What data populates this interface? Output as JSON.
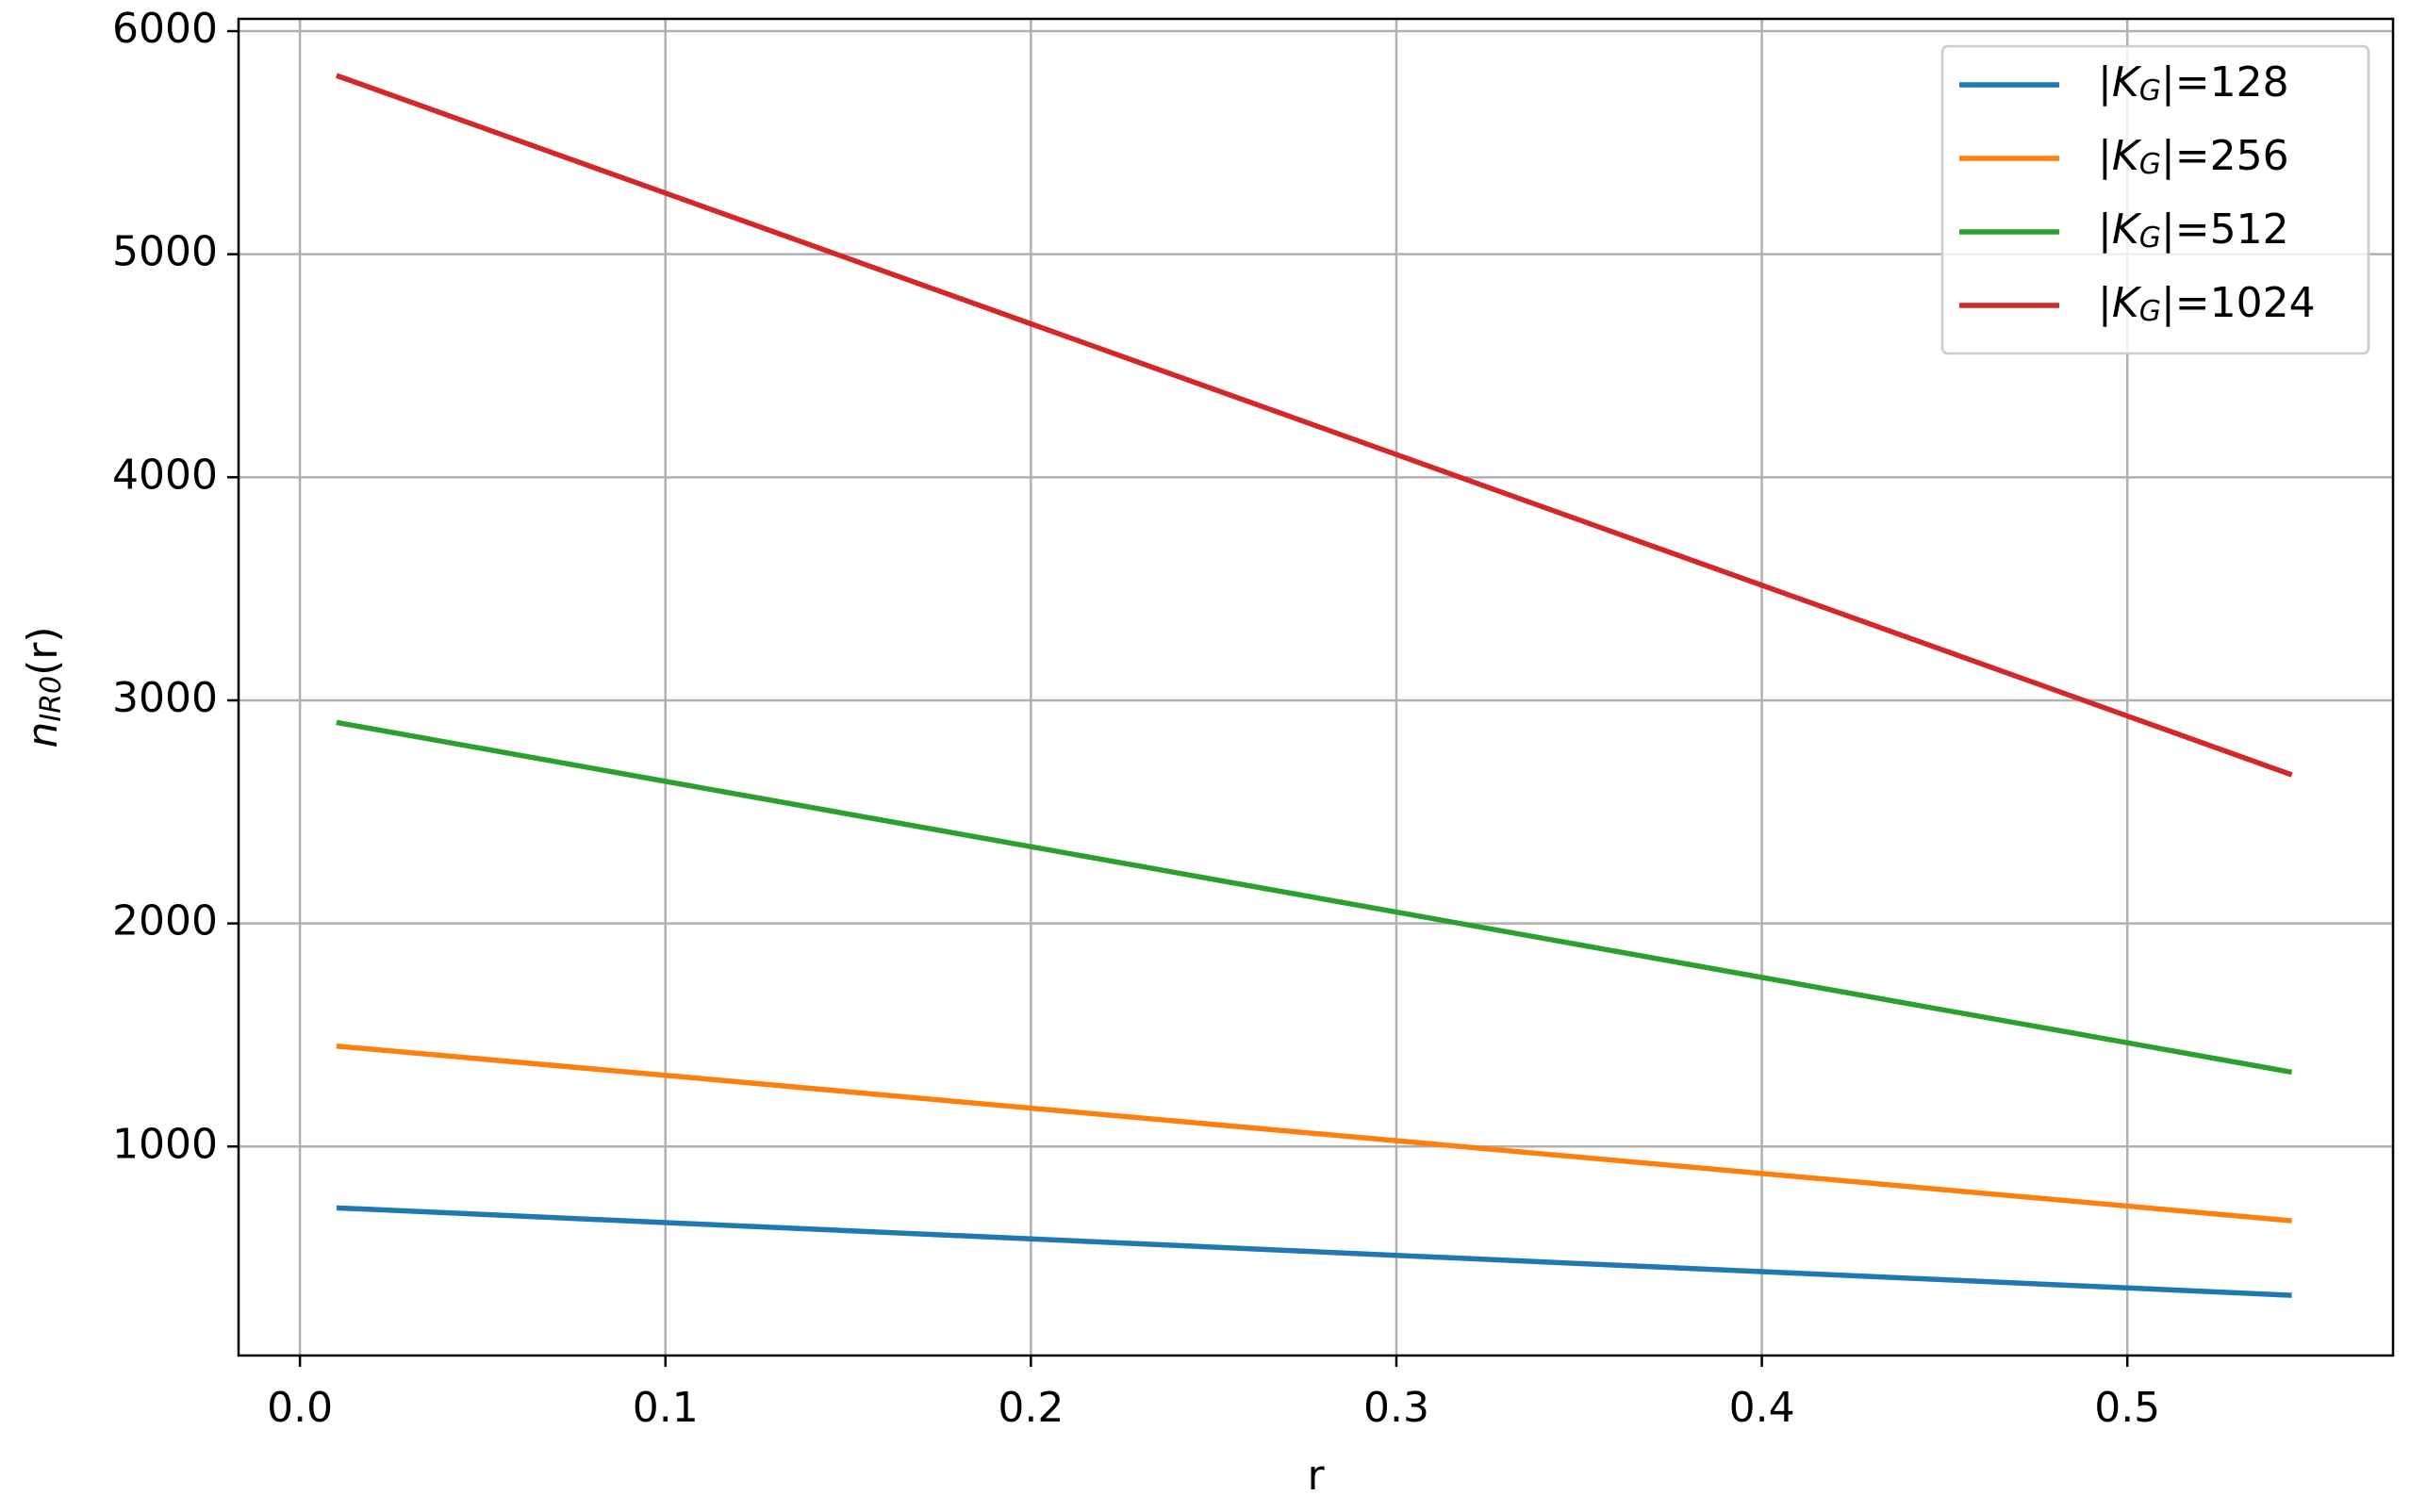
{
  "chart_data": {
    "type": "line",
    "xlabel": "r",
    "ylabel": "n_IR0(r)",
    "x": [
      0.01,
      0.1,
      0.2,
      0.3,
      0.4,
      0.5,
      0.545
    ],
    "series": [
      {
        "name": "|K_G|=128",
        "color": "#1f77b4",
        "values": [
          725,
          659,
          586,
          512,
          439,
          366,
          333
        ]
      },
      {
        "name": "|K_G|=256",
        "color": "#ff7f0e",
        "values": [
          1450,
          1319,
          1172,
          1026,
          879,
          733,
          667
        ]
      },
      {
        "name": "|K_G|=512",
        "color": "#2ca02c",
        "values": [
          2901,
          2637,
          2344,
          2051,
          1758,
          1465,
          1333
        ]
      },
      {
        "name": "|K_G|=1024",
        "color": "#d62728",
        "values": [
          5801,
          5274,
          4688,
          4102,
          3516,
          2930,
          2666
        ]
      }
    ],
    "xlim": [
      -0.0168,
      0.5727
    ],
    "ylim": [
      63,
      6055
    ],
    "xticks": [
      {
        "value": 0,
        "label": "0.0"
      },
      0.1,
      0.2,
      0.3,
      0.4,
      0.5
    ],
    "yticks": [
      1000,
      2000,
      3000,
      4000,
      5000,
      6000
    ],
    "grid": true,
    "legend": "upper right"
  }
}
